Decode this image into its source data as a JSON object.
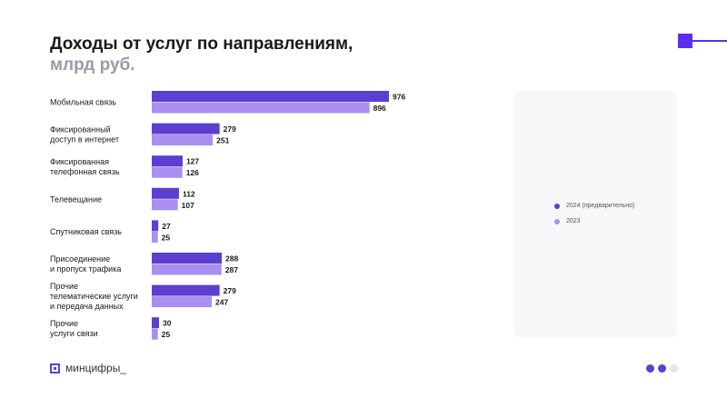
{
  "title": "Доходы от услуг по направлениям,",
  "subtitle": "млрд руб.",
  "colors": {
    "primary": "#5b3fd1",
    "secondary": "#a98ff0",
    "dot_light": "#e4e4ec",
    "accent": "#5b2ef0"
  },
  "logo_text": "минцифры_",
  "legend": {
    "series_2024": "2024 (предварительно)",
    "series_2023": "2023"
  },
  "chart_data": {
    "type": "bar",
    "orientation": "horizontal",
    "title": "Доходы от услуг по направлениям, млрд руб.",
    "categories": [
      [
        "Мобильная связь"
      ],
      [
        "Фиксированный",
        "доступ в интернет"
      ],
      [
        "Фиксированная",
        "телефонная связь"
      ],
      [
        "Телевещание"
      ],
      [
        "Спутниковая связь"
      ],
      [
        "Присоединение",
        "и пропуск трафика"
      ],
      [
        "Прочие",
        "телематические услуги",
        "и передача данных"
      ],
      [
        "Прочие",
        "услуги связи"
      ]
    ],
    "series": [
      {
        "name": "2024 (предварительно)",
        "values": [
          976,
          279,
          127,
          112,
          27,
          288,
          279,
          30
        ]
      },
      {
        "name": "2023",
        "values": [
          896,
          251,
          126,
          107,
          25,
          287,
          247,
          25
        ]
      }
    ],
    "xlim": [
      0,
      976
    ],
    "grid": false,
    "legend_position": "right"
  }
}
